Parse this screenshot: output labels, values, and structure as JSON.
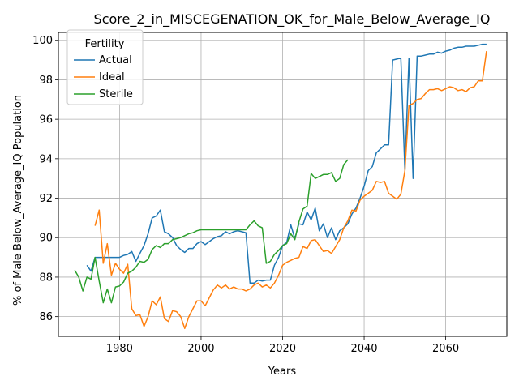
{
  "chart_data": {
    "type": "line",
    "title": "Score_2_in_MISCEGENATION_OK_for_Male_Below_Average_IQ",
    "xlabel": "Years",
    "ylabel": "% of Male Below_Average_IQ Population",
    "xlim": [
      1965,
      2075
    ],
    "ylim": [
      85.0,
      100.4
    ],
    "xticks": [
      1980,
      2000,
      2020,
      2040,
      2060
    ],
    "yticks": [
      86,
      88,
      90,
      92,
      94,
      96,
      98,
      100
    ],
    "grid": true,
    "legend": {
      "title": "Fertility",
      "placement": "top-left"
    },
    "colors": {
      "Actual": "#1f77b4",
      "Ideal": "#ff7f0e",
      "Sterile": "#2ca02c"
    },
    "series": [
      {
        "name": "Actual",
        "x": [
          1972,
          1973,
          1974,
          1975,
          1976,
          1977,
          1978,
          1979,
          1980,
          1981,
          1982,
          1983,
          1984,
          1985,
          1986,
          1987,
          1988,
          1989,
          1990,
          1991,
          1992,
          1993,
          1994,
          1995,
          1996,
          1997,
          1998,
          1999,
          2000,
          2001,
          2002,
          2003,
          2004,
          2005,
          2006,
          2007,
          2008,
          2009,
          2010,
          2011,
          2012,
          2013,
          2014,
          2015,
          2016,
          2017,
          2018,
          2019,
          2020,
          2021,
          2022,
          2023,
          2024,
          2025,
          2026,
          2027,
          2028,
          2029,
          2030,
          2031,
          2032,
          2033,
          2034,
          2035,
          2036,
          2037,
          2038,
          2039,
          2040,
          2041,
          2042,
          2043,
          2044,
          2045,
          2046,
          2047,
          2048,
          2049,
          2050,
          2051,
          2052,
          2053,
          2054,
          2055,
          2056,
          2057,
          2058,
          2059,
          2060,
          2061,
          2062,
          2063,
          2064,
          2065,
          2066,
          2067,
          2068,
          2069,
          2070
        ],
        "values": [
          88.6,
          88.3,
          89.0,
          89.0,
          89.0,
          89.0,
          89.0,
          89.0,
          89.0,
          89.1,
          89.15,
          89.3,
          88.8,
          89.2,
          89.6,
          90.2,
          91.0,
          91.1,
          91.4,
          90.3,
          90.2,
          90.0,
          89.6,
          89.4,
          89.25,
          89.45,
          89.45,
          89.7,
          89.8,
          89.65,
          89.8,
          89.95,
          90.05,
          90.1,
          90.3,
          90.2,
          90.3,
          90.35,
          90.3,
          90.25,
          87.7,
          87.7,
          87.85,
          87.8,
          87.85,
          87.85,
          88.6,
          89.0,
          89.6,
          89.75,
          90.65,
          89.95,
          90.7,
          90.65,
          91.3,
          90.9,
          91.5,
          90.35,
          90.7,
          90.0,
          90.5,
          89.9,
          90.35,
          90.5,
          90.7,
          91.2,
          91.5,
          92.0,
          92.6,
          93.4,
          93.6,
          94.3,
          94.5,
          94.7,
          94.7,
          99.0,
          99.05,
          99.1,
          93.4,
          99.1,
          93.0,
          99.2,
          99.2,
          99.25,
          99.3,
          99.3,
          99.4,
          99.35,
          99.45,
          99.5,
          99.6,
          99.65,
          99.65,
          99.7,
          99.7,
          99.7,
          99.75,
          99.8,
          99.8
        ]
      },
      {
        "name": "Ideal",
        "x": [
          1974,
          1975,
          1976,
          1977,
          1978,
          1979,
          1980,
          1981,
          1982,
          1983,
          1984,
          1985,
          1986,
          1987,
          1988,
          1989,
          1990,
          1991,
          1992,
          1993,
          1994,
          1995,
          1996,
          1997,
          1998,
          1999,
          2000,
          2001,
          2002,
          2003,
          2004,
          2005,
          2006,
          2007,
          2008,
          2009,
          2010,
          2011,
          2012,
          2013,
          2014,
          2015,
          2016,
          2017,
          2018,
          2019,
          2020,
          2021,
          2022,
          2023,
          2024,
          2025,
          2026,
          2027,
          2028,
          2029,
          2030,
          2031,
          2032,
          2033,
          2034,
          2035,
          2036,
          2037,
          2038,
          2039,
          2040,
          2041,
          2042,
          2043,
          2044,
          2045,
          2046,
          2047,
          2048,
          2049,
          2050,
          2051,
          2052,
          2053,
          2054,
          2055,
          2056,
          2057,
          2058,
          2059,
          2060,
          2061,
          2062,
          2063,
          2064,
          2065,
          2066,
          2067,
          2068,
          2069,
          2070
        ],
        "values": [
          90.6,
          91.4,
          88.7,
          89.7,
          88.1,
          88.7,
          88.4,
          88.2,
          88.65,
          86.4,
          86.05,
          86.1,
          85.5,
          86.0,
          86.8,
          86.6,
          87.0,
          85.9,
          85.75,
          86.3,
          86.25,
          86.0,
          85.4,
          86.0,
          86.4,
          86.8,
          86.8,
          86.55,
          86.95,
          87.35,
          87.6,
          87.45,
          87.6,
          87.4,
          87.5,
          87.4,
          87.4,
          87.3,
          87.4,
          87.6,
          87.7,
          87.5,
          87.6,
          87.45,
          87.7,
          88.1,
          88.6,
          88.75,
          88.85,
          88.95,
          89.0,
          89.55,
          89.45,
          89.85,
          89.9,
          89.6,
          89.3,
          89.35,
          89.2,
          89.55,
          89.9,
          90.5,
          90.85,
          91.4,
          91.35,
          91.9,
          92.1,
          92.25,
          92.4,
          92.85,
          92.8,
          92.85,
          92.25,
          92.1,
          91.95,
          92.2,
          93.4,
          96.7,
          96.8,
          97.0,
          97.05,
          97.3,
          97.5,
          97.5,
          97.55,
          97.45,
          97.55,
          97.65,
          97.6,
          97.45,
          97.5,
          97.4,
          97.6,
          97.65,
          97.95,
          97.95,
          99.45
        ]
      },
      {
        "name": "Sterile",
        "x": [
          1969,
          1970,
          1971,
          1972,
          1973,
          1974,
          1975,
          1976,
          1977,
          1978,
          1979,
          1980,
          1981,
          1982,
          1983,
          1984,
          1985,
          1986,
          1987,
          1988,
          1989,
          1990,
          1991,
          1992,
          1993,
          1994,
          1995,
          1996,
          1997,
          1998,
          1999,
          2000,
          2001,
          2002,
          2003,
          2004,
          2005,
          2006,
          2007,
          2008,
          2009,
          2010,
          2011,
          2012,
          2013,
          2014,
          2015,
          2016,
          2017,
          2018,
          2019,
          2020,
          2021,
          2022,
          2023,
          2024,
          2025,
          2026,
          2027,
          2028,
          2029,
          2030,
          2031,
          2032,
          2033,
          2034,
          2035,
          2036
        ],
        "values": [
          88.35,
          88.0,
          87.3,
          88.0,
          87.9,
          89.0,
          87.8,
          86.7,
          87.4,
          86.7,
          87.5,
          87.55,
          87.75,
          88.2,
          88.3,
          88.5,
          88.8,
          88.75,
          88.9,
          89.4,
          89.6,
          89.5,
          89.7,
          89.7,
          89.9,
          89.95,
          90.0,
          90.1,
          90.2,
          90.25,
          90.35,
          90.4,
          90.4,
          90.4,
          90.4,
          90.4,
          90.4,
          90.4,
          90.4,
          90.4,
          90.4,
          90.4,
          90.4,
          90.65,
          90.85,
          90.6,
          90.5,
          88.7,
          88.8,
          89.15,
          89.35,
          89.6,
          89.7,
          90.2,
          89.9,
          90.8,
          91.45,
          91.6,
          93.25,
          93.0,
          93.1,
          93.2,
          93.2,
          93.3,
          92.85,
          93.0,
          93.7,
          93.95
        ]
      }
    ]
  }
}
